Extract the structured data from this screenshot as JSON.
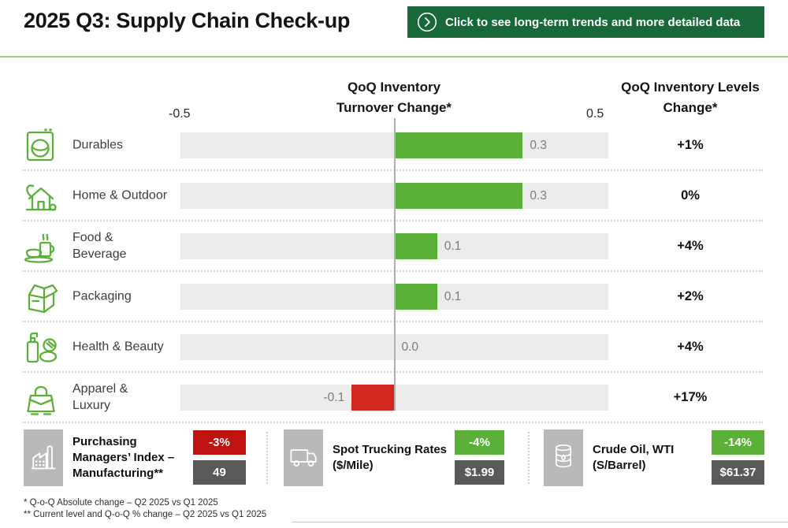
{
  "header": {
    "title": "2025 Q3: Supply Chain Check-up",
    "cta_label": "Click to see long-term trends and more detailed data"
  },
  "columns": {
    "turnover_header": "QoQ Inventory Turnover Change*",
    "levels_header": "QoQ Inventory Levels Change*",
    "axis_min": "-0.5",
    "axis_max": "0.5"
  },
  "chart_data": {
    "type": "bar",
    "orientation": "horizontal",
    "title": "2025 Q3: Supply Chain Check-up",
    "xlabel": "QoQ Inventory Turnover Change*",
    "xlim": [
      -0.5,
      0.5
    ],
    "grid": false,
    "categories": [
      "Durables",
      "Home & Outdoor",
      "Food & Beverage",
      "Packaging",
      "Health & Beauty",
      "Apparel & Luxury"
    ],
    "series": [
      {
        "name": "QoQ Inventory Turnover Change*",
        "values": [
          0.3,
          0.3,
          0.1,
          0.1,
          0.0,
          -0.1
        ]
      },
      {
        "name": "QoQ Inventory Levels Change*",
        "values": [
          "+1%",
          "0%",
          "+4%",
          "+2%",
          "+4%",
          "+17%"
        ]
      }
    ],
    "bar_color_positive": "#5bb138",
    "bar_color_negative": "#d2271f"
  },
  "rows": [
    {
      "label": "Durables",
      "icon": "washing-machine-icon",
      "turnover": 0.3,
      "turnover_label": "0.3",
      "levels_label": "+1%"
    },
    {
      "label": "Home & Outdoor",
      "icon": "house-icon",
      "turnover": 0.3,
      "turnover_label": "0.3",
      "levels_label": "0%"
    },
    {
      "label": "Food & Beverage",
      "icon": "food-beverage-icon",
      "turnover": 0.1,
      "turnover_label": "0.1",
      "levels_label": "+4%"
    },
    {
      "label": "Packaging",
      "icon": "open-box-icon",
      "turnover": 0.1,
      "turnover_label": "0.1",
      "levels_label": "+2%"
    },
    {
      "label": "Health & Beauty",
      "icon": "cosmetics-icon",
      "turnover": 0.0,
      "turnover_label": "0.0",
      "levels_label": "+4%"
    },
    {
      "label": "Apparel & Luxury",
      "icon": "handbag-icon",
      "turnover": -0.1,
      "turnover_label": "-0.1",
      "levels_label": "+17%"
    }
  ],
  "kpis": [
    {
      "icon": "factory-icon",
      "label": "Purchasing Managers’ Index – Manufacturing**",
      "change_label": "-3%",
      "change_color": "#c11212",
      "value_label": "49"
    },
    {
      "icon": "truck-icon",
      "label": "Spot Trucking Rates ($/Mile)",
      "change_label": "-4%",
      "change_color": "#5bb138",
      "value_label": "$1.99"
    },
    {
      "icon": "oil-barrel-icon",
      "label": "Crude Oil, WTI (S/Barrel)",
      "change_label": "-14%",
      "change_color": "#5bb138",
      "value_label": "$61.37"
    }
  ],
  "footnotes": [
    "* Q-o-Q Absolute change – Q2 2025 vs Q1 2025",
    "** Current level and Q-o-Q % change – Q2 2025 vs Q1 2025"
  ],
  "colors": {
    "positive": "#5bb138",
    "negative": "#d2271f",
    "cta_background": "#17693a",
    "divider": "#a3cc83",
    "track": "#ececec",
    "value_badge": "#595959",
    "icon_box": "#b9b9b9",
    "zero_line": "#b0b0b0"
  }
}
